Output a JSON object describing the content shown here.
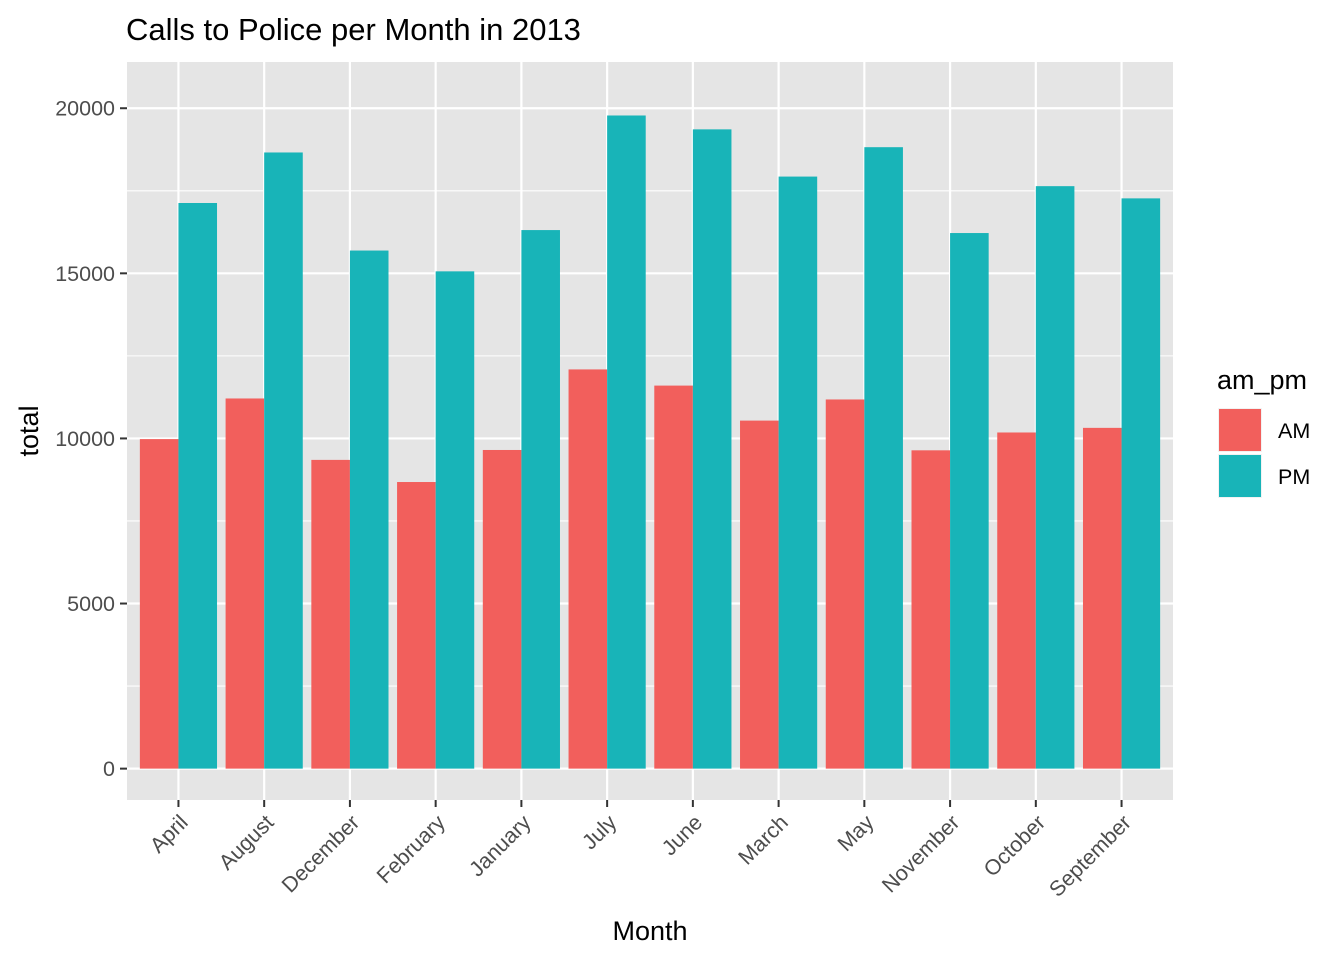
{
  "chart_data": {
    "type": "bar",
    "title": "Calls to Police per Month in 2013",
    "xlabel": "Month",
    "ylabel": "total",
    "categories": [
      "April",
      "August",
      "December",
      "February",
      "January",
      "July",
      "June",
      "March",
      "May",
      "November",
      "October",
      "September"
    ],
    "series": [
      {
        "name": "AM",
        "color": "#F25F5C",
        "values": [
          9980,
          11210,
          9350,
          8680,
          9650,
          12090,
          11600,
          10540,
          11180,
          9640,
          10180,
          10320
        ]
      },
      {
        "name": "PM",
        "color": "#18B4B8",
        "values": [
          17130,
          18660,
          15690,
          15060,
          16310,
          19780,
          19360,
          17930,
          18820,
          16220,
          17640,
          17270
        ]
      }
    ],
    "ylim": [
      -950,
      21400
    ],
    "yticks": [
      0,
      5000,
      10000,
      15000,
      20000
    ],
    "grid": true,
    "legend": {
      "title": "am_pm",
      "position": "right",
      "entries": [
        "AM",
        "PM"
      ]
    },
    "panel_color": "#E5E5E5",
    "grid_color": "#FFFFFF"
  }
}
